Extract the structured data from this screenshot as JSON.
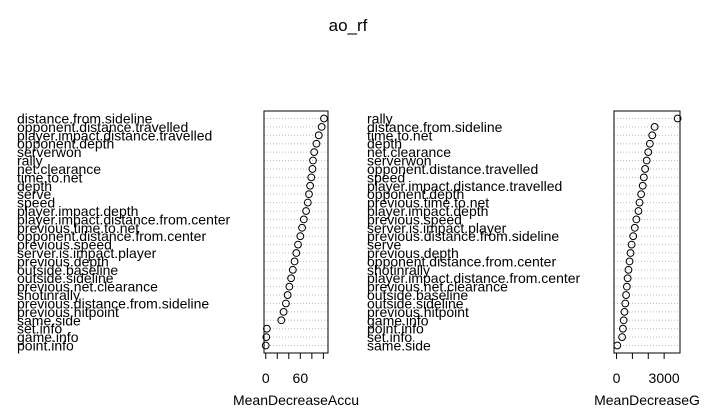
{
  "title": "ao_rf",
  "chart_data": [
    {
      "type": "scatter",
      "subtype": "dotchart",
      "xlabel": "MeanDecreaseAccu",
      "xlim": [
        -3,
        108
      ],
      "xticks": [
        0,
        60
      ],
      "xticks_minor": [
        20,
        40,
        80,
        100
      ],
      "grid": "dotted-horizontal",
      "variables": [
        {
          "name": "distance.from.sideline",
          "value": 101
        },
        {
          "name": "opponent.distance.travelled",
          "value": 97
        },
        {
          "name": "player.impact.distance.travelled",
          "value": 92
        },
        {
          "name": "opponent.depth",
          "value": 88
        },
        {
          "name": "serverwon",
          "value": 84
        },
        {
          "name": "rally",
          "value": 82
        },
        {
          "name": "net.clearance",
          "value": 81
        },
        {
          "name": "time.to.net",
          "value": 79
        },
        {
          "name": "depth",
          "value": 77
        },
        {
          "name": "serve",
          "value": 75
        },
        {
          "name": "speed",
          "value": 73
        },
        {
          "name": "player.impact.depth",
          "value": 70
        },
        {
          "name": "player.impact.distance.from.center",
          "value": 66
        },
        {
          "name": "previous.time.to.net",
          "value": 63
        },
        {
          "name": "opponent.distance.from.center",
          "value": 60
        },
        {
          "name": "previous.speed",
          "value": 56
        },
        {
          "name": "server.is.impact.player",
          "value": 53
        },
        {
          "name": "previous.depth",
          "value": 50
        },
        {
          "name": "outside.baseline",
          "value": 47
        },
        {
          "name": "outside.sideline",
          "value": 44
        },
        {
          "name": "previous.net.clearance",
          "value": 41
        },
        {
          "name": "shotinrally",
          "value": 38
        },
        {
          "name": "previous.distance.from.sideline",
          "value": 35
        },
        {
          "name": "previous.hitpoint",
          "value": 31
        },
        {
          "name": "same.side",
          "value": 27
        },
        {
          "name": "set.info",
          "value": 2
        },
        {
          "name": "game.info",
          "value": 1
        },
        {
          "name": "point.info",
          "value": 0
        }
      ]
    },
    {
      "type": "scatter",
      "subtype": "dotchart",
      "xlabel": "MeanDecreaseG",
      "xlim": [
        -160,
        4000
      ],
      "xticks": [
        0,
        3000
      ],
      "xticks_minor": [
        1000,
        2000
      ],
      "grid": "dotted-horizontal",
      "variables": [
        {
          "name": "rally",
          "value": 3850
        },
        {
          "name": "distance.from.sideline",
          "value": 2400
        },
        {
          "name": "time.to.net",
          "value": 2250
        },
        {
          "name": "depth",
          "value": 2100
        },
        {
          "name": "net.clearance",
          "value": 2000
        },
        {
          "name": "serverwon",
          "value": 1900
        },
        {
          "name": "opponent.distance.travelled",
          "value": 1800
        },
        {
          "name": "speed",
          "value": 1720
        },
        {
          "name": "player.impact.distance.travelled",
          "value": 1650
        },
        {
          "name": "opponent.depth",
          "value": 1550
        },
        {
          "name": "previous.time.to.net",
          "value": 1450
        },
        {
          "name": "player.impact.depth",
          "value": 1380
        },
        {
          "name": "previous.speed",
          "value": 1250
        },
        {
          "name": "server.is.impact.player",
          "value": 1150
        },
        {
          "name": "previous.distance.from.sideline",
          "value": 1050
        },
        {
          "name": "serve",
          "value": 950
        },
        {
          "name": "previous.depth",
          "value": 880
        },
        {
          "name": "opponent.distance.from.center",
          "value": 820
        },
        {
          "name": "shotinrally",
          "value": 750
        },
        {
          "name": "player.impact.distance.from.center",
          "value": 700
        },
        {
          "name": "previous.net.clearance",
          "value": 650
        },
        {
          "name": "outside.baseline",
          "value": 600
        },
        {
          "name": "outside.sideline",
          "value": 550
        },
        {
          "name": "previous.hitpoint",
          "value": 500
        },
        {
          "name": "game.info",
          "value": 450
        },
        {
          "name": "point.info",
          "value": 400
        },
        {
          "name": "set.info",
          "value": 350
        },
        {
          "name": "same.side",
          "value": 50
        }
      ]
    }
  ]
}
